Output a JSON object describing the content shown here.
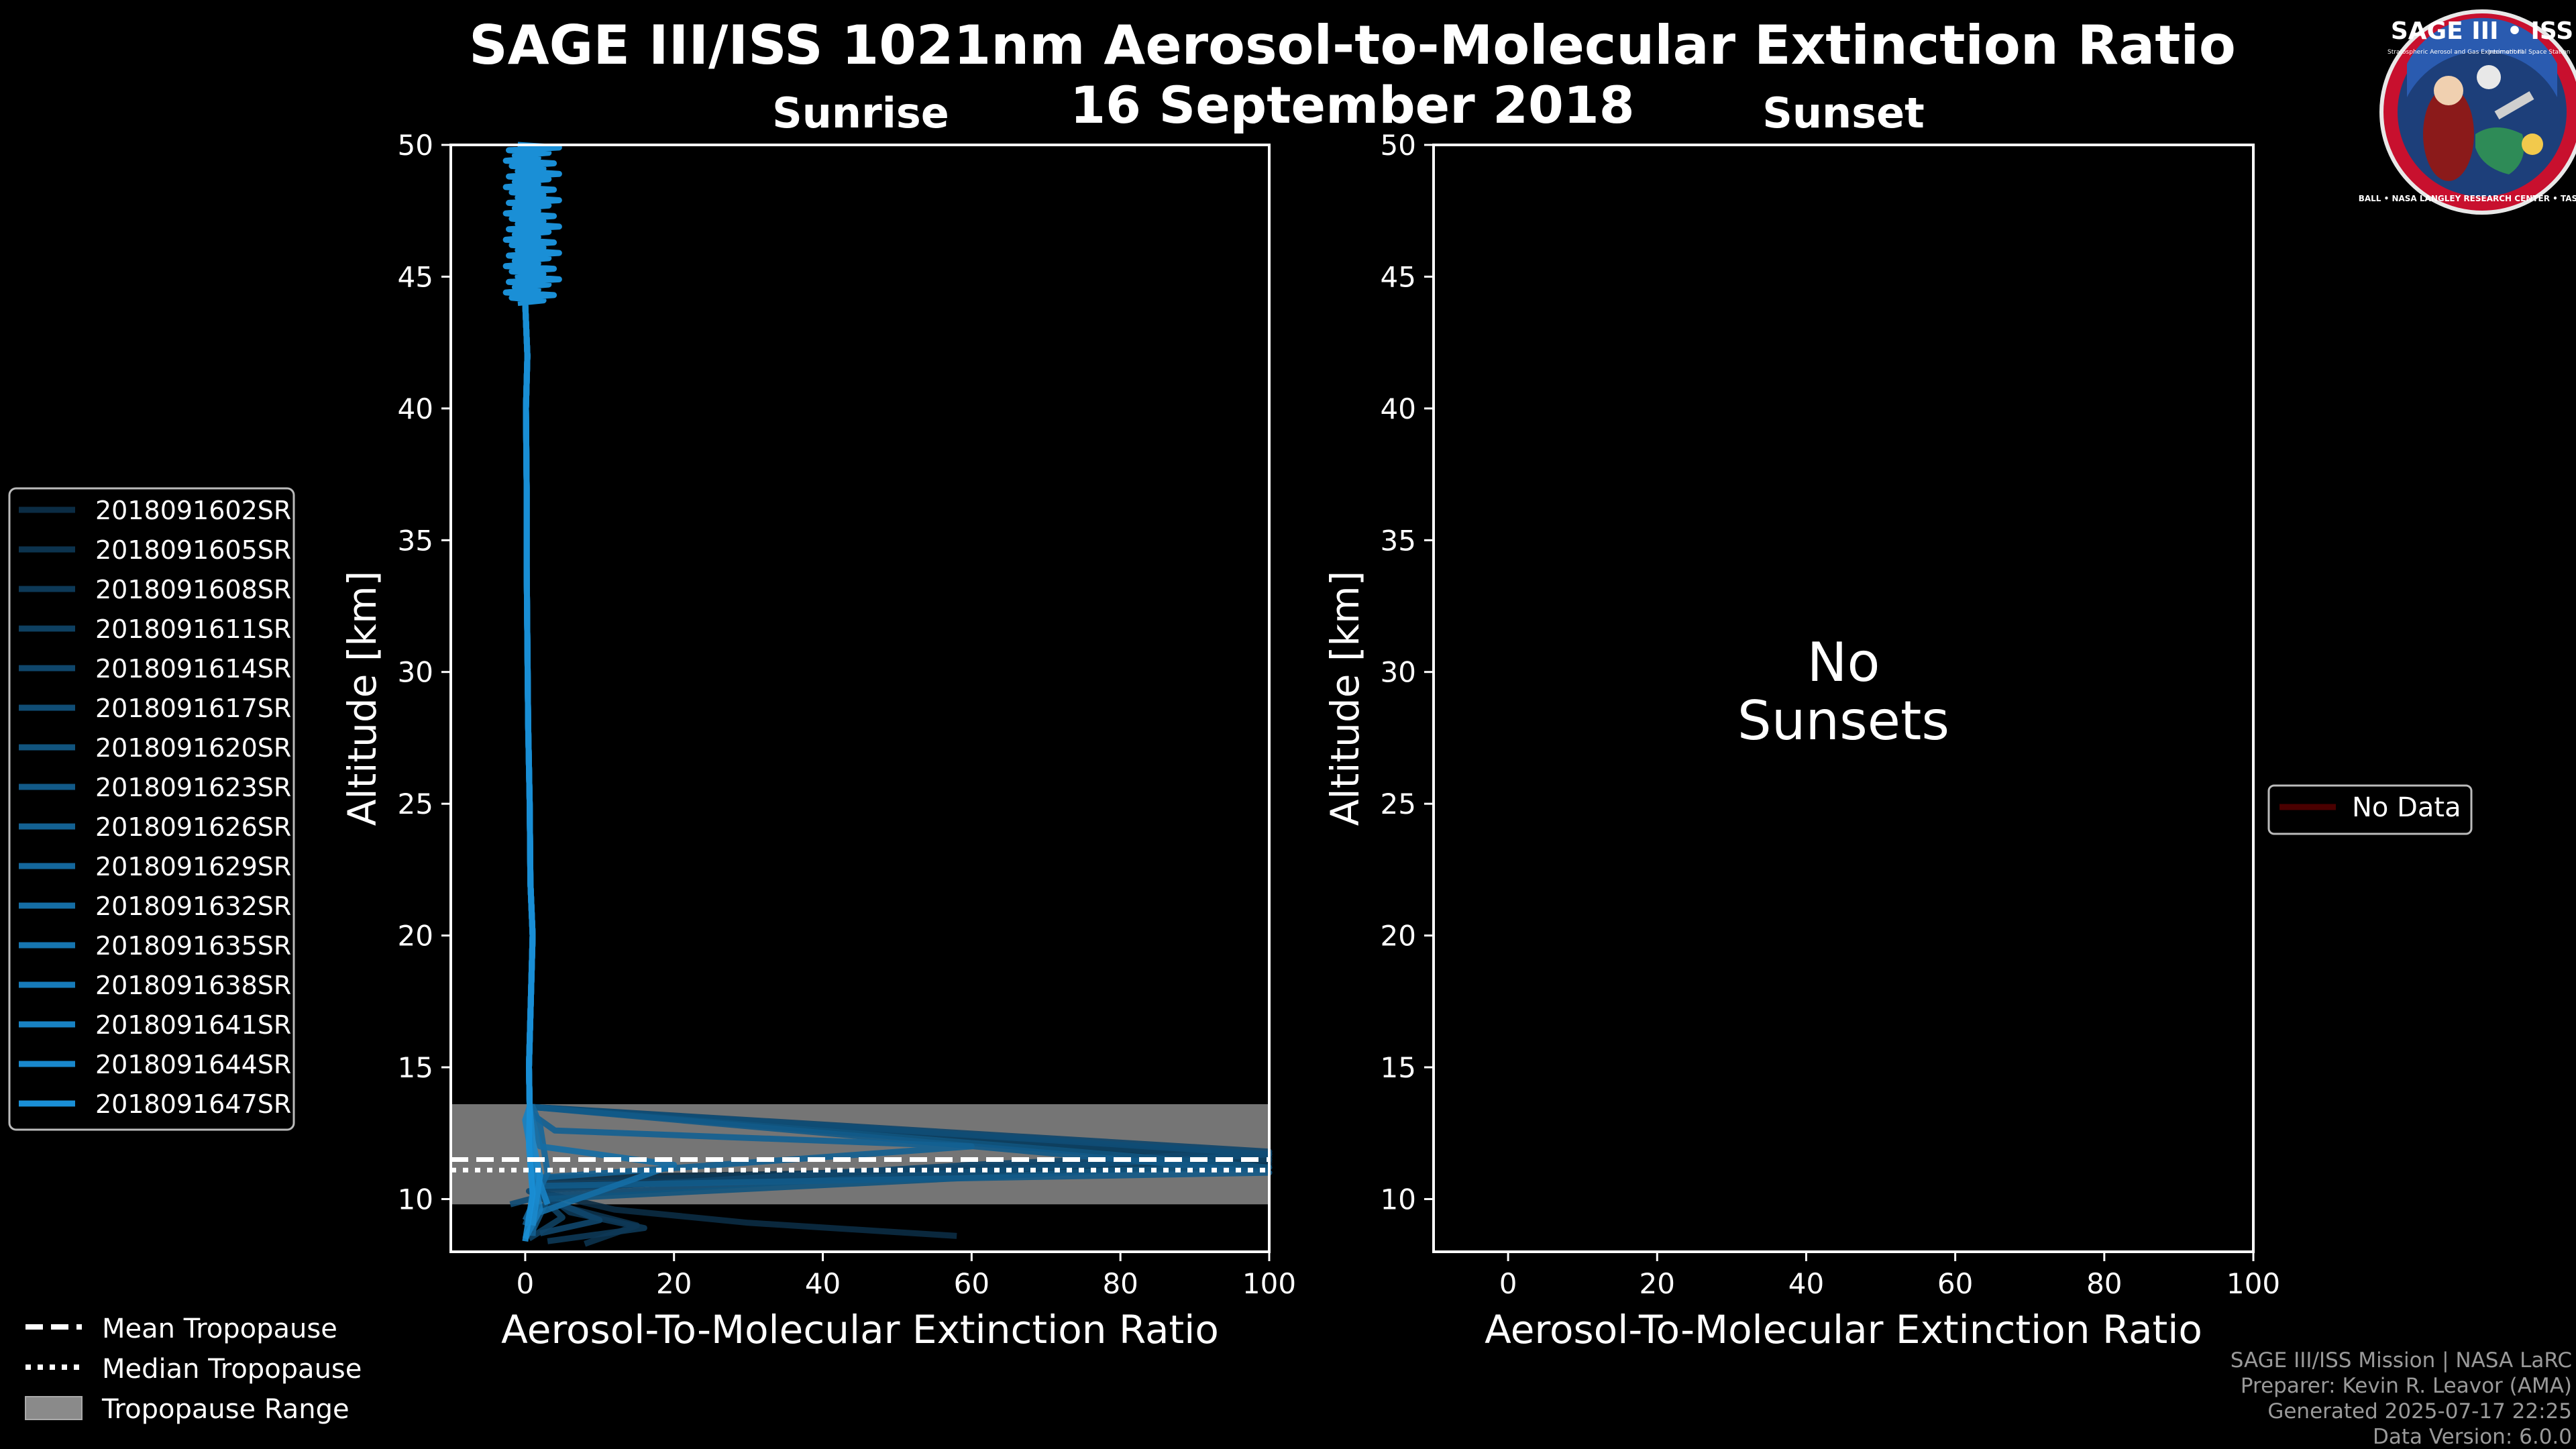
{
  "header": {
    "title": "SAGE III/ISS 1021nm Aerosol-to-Molecular Extinction Ratio",
    "date": "16 September 2018"
  },
  "logo": {
    "text": "SAGE III • ISS",
    "subtitle": "Stratospheric Aerosol and Gas Experiment III",
    "station": "International Space Station",
    "ring": "BALL • NASA LANGLEY RESEARCH CENTER • TAS • ESA"
  },
  "footer": {
    "mission": "SAGE III/ISS Mission | NASA LaRC",
    "preparer": "Preparer: Kevin R. Leavor (AMA)",
    "generated": "Generated 2025-07-17 22:25",
    "version": "Data Version: 6.0.0"
  },
  "colors": {
    "background": "#000000",
    "series_dark": "#0b2c44",
    "series_light": "#1a8fd6",
    "tropopause_band": "#8a8a8a",
    "no_data": "#4a0000"
  },
  "chart_data": [
    {
      "type": "line",
      "panel": "Sunrise",
      "title": "Sunrise",
      "xlabel": "Aerosol-To-Molecular Extinction Ratio",
      "ylabel": "Altitude [km]",
      "xlim": [
        -10,
        100
      ],
      "ylim": [
        8,
        50
      ],
      "xticks": [
        0,
        20,
        40,
        60,
        80,
        100
      ],
      "yticks": [
        10,
        15,
        20,
        25,
        30,
        35,
        40,
        45,
        50
      ],
      "legend_position": "left",
      "tropopause": {
        "mean": 11.5,
        "median": 11.1,
        "range": [
          9.8,
          13.6
        ]
      },
      "series": [
        {
          "name": "2018091602SR",
          "points": [
            [
              58,
              8.6
            ],
            [
              30,
              9.1
            ],
            [
              12,
              9.6
            ],
            [
              3,
              10.2
            ],
            [
              1.5,
              10.8
            ],
            [
              90,
              11.2
            ],
            [
              100,
              11.3
            ]
          ]
        },
        {
          "name": "2018091605SR",
          "points": [
            [
              8,
              8.3
            ],
            [
              15,
              9.0
            ],
            [
              4,
              9.8
            ],
            [
              2,
              10.5
            ],
            [
              70,
              11.0
            ],
            [
              100,
              11.4
            ]
          ]
        },
        {
          "name": "2018091608SR",
          "points": [
            [
              3,
              8.4
            ],
            [
              16,
              8.9
            ],
            [
              6,
              9.5
            ],
            [
              1,
              10.6
            ],
            [
              100,
              11.6
            ]
          ]
        },
        {
          "name": "2018091611SR",
          "points": [
            [
              0.5,
              8.5
            ],
            [
              5,
              9.3
            ],
            [
              1,
              10.4
            ],
            [
              100,
              11.5
            ]
          ]
        },
        {
          "name": "2018091614SR",
          "points": [
            [
              2,
              8.7
            ],
            [
              10,
              9.2
            ],
            [
              0.5,
              10.3
            ],
            [
              60,
              11.3
            ],
            [
              100,
              11.8
            ]
          ]
        },
        {
          "name": "2018091617SR",
          "points": [
            [
              -2,
              9.8
            ],
            [
              2,
              10.1
            ],
            [
              100,
              11.7
            ]
          ]
        },
        {
          "name": "2018091620SR",
          "points": [
            [
              1,
              8.8
            ],
            [
              3,
              10.0
            ],
            [
              80,
              11.1
            ],
            [
              100,
              11.2
            ]
          ]
        },
        {
          "name": "2018091623SR",
          "points": [
            [
              0,
              9.0
            ],
            [
              2,
              10.5
            ],
            [
              100,
              11.0
            ]
          ]
        },
        {
          "name": "2018091626SR",
          "points": [
            [
              1,
              8.6
            ],
            [
              1.5,
              10.8
            ],
            [
              60,
              12.0
            ],
            [
              4,
              12.6
            ],
            [
              1,
              13.2
            ]
          ]
        },
        {
          "name": "2018091629SR",
          "points": [
            [
              0,
              9.2
            ],
            [
              3,
              11.0
            ],
            [
              2,
              12.8
            ],
            [
              1,
              13.5
            ]
          ]
        },
        {
          "name": "2018091632SR",
          "points": [
            [
              2,
              9.5
            ],
            [
              20,
              11.3
            ],
            [
              2,
              12.0
            ],
            [
              1,
              13.0
            ]
          ]
        },
        {
          "name": "2018091635SR",
          "points": [
            [
              1,
              9.0
            ],
            [
              1,
              11.0
            ],
            [
              0.5,
              13.0
            ]
          ]
        },
        {
          "name": "2018091638SR",
          "points": [
            [
              0,
              8.5
            ],
            [
              2,
              9.6
            ],
            [
              1,
              11.2
            ],
            [
              0.5,
              12.5
            ]
          ]
        },
        {
          "name": "2018091641SR",
          "points": [
            [
              3,
              9.8
            ],
            [
              1,
              11.4
            ],
            [
              0,
              13.0
            ]
          ]
        },
        {
          "name": "2018091644SR",
          "points": [
            [
              1,
              9.0
            ],
            [
              2,
              10.9
            ],
            [
              1,
              12.2
            ]
          ]
        },
        {
          "name": "2018091647SR",
          "points": [
            [
              0,
              8.4
            ],
            [
              1,
              10.2
            ],
            [
              0.5,
              12.0
            ]
          ]
        }
      ],
      "common_profile": [
        [
          0.6,
          13.5
        ],
        [
          0.5,
          15
        ],
        [
          0.8,
          18
        ],
        [
          1.0,
          20
        ],
        [
          0.7,
          22
        ],
        [
          0.6,
          25
        ],
        [
          0.4,
          28
        ],
        [
          0.3,
          31
        ],
        [
          0.2,
          34
        ],
        [
          0.2,
          37
        ],
        [
          0.1,
          40
        ],
        [
          0.3,
          42
        ],
        [
          0,
          44
        ],
        [
          0.5,
          45
        ],
        [
          0.8,
          46
        ],
        [
          1.2,
          47
        ],
        [
          1.5,
          48
        ],
        [
          1.8,
          49
        ],
        [
          1.0,
          49.5
        ],
        [
          0.8,
          50
        ]
      ],
      "legend_extra": [
        "Mean Tropopause",
        "Median Tropopause",
        "Tropopause Range"
      ]
    },
    {
      "type": "line",
      "panel": "Sunset",
      "title": "Sunset",
      "xlabel": "Aerosol-To-Molecular Extinction Ratio",
      "ylabel": "Altitude [km]",
      "xlim": [
        -10,
        100
      ],
      "ylim": [
        8,
        50
      ],
      "xticks": [
        0,
        20,
        40,
        60,
        80,
        100
      ],
      "yticks": [
        10,
        15,
        20,
        25,
        30,
        35,
        40,
        45,
        50
      ],
      "annotation": [
        "No",
        "Sunsets"
      ],
      "legend_position": "right",
      "series": [
        {
          "name": "No Data",
          "points": []
        }
      ]
    }
  ]
}
